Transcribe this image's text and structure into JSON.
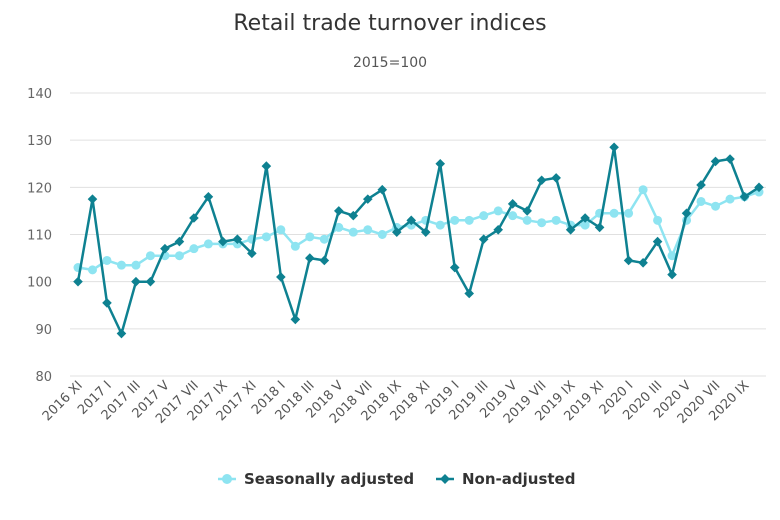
{
  "chart_data": {
    "type": "line",
    "title": "Retail trade turnover indices",
    "subtitle": "2015=100",
    "xlabel": "",
    "ylabel": "",
    "ylim": [
      80,
      140
    ],
    "yticks": [
      80,
      90,
      100,
      110,
      120,
      130,
      140
    ],
    "grid": true,
    "legend_position": "bottom-center",
    "x": [
      "2016 XI",
      "2016 XII",
      "2017 I",
      "2017 II",
      "2017 III",
      "2017 IV",
      "2017 V",
      "2017 VI",
      "2017 VII",
      "2017 VIII",
      "2017 IX",
      "2017 X",
      "2017 XI",
      "2017 XII",
      "2018 I",
      "2018 II",
      "2018 III",
      "2018 IV",
      "2018 V",
      "2018 VI",
      "2018 VII",
      "2018 VIII",
      "2018 IX",
      "2018 X",
      "2018 XI",
      "2018 XII",
      "2019 I",
      "2019 II",
      "2019 III",
      "2019 IV",
      "2019 V",
      "2019 VI",
      "2019 VII",
      "2019 VIII",
      "2019 IX",
      "2019 X",
      "2019 XI",
      "2019 XII",
      "2020 I",
      "2020 II",
      "2020 III",
      "2020 IV",
      "2020 V",
      "2020 VI",
      "2020 VII",
      "2020 VIII",
      "2020 IX",
      "2020 X"
    ],
    "tick_labels": [
      "2016 XI",
      "2017 I",
      "2017 III",
      "2017 V",
      "2017 VII",
      "2017 IX",
      "2017 XI",
      "2018 I",
      "2018 III",
      "2018 V",
      "2018 VII",
      "2018 IX",
      "2018 XI",
      "2019 I",
      "2019 III",
      "2019 V",
      "2019 VII",
      "2019 IX",
      "2019 XI",
      "2020 I",
      "2020 III",
      "2020 V",
      "2020 VII",
      "2020 IX"
    ],
    "series": [
      {
        "name": "Seasonally adjusted",
        "color": "#8ee4f1",
        "marker": "circle",
        "values": [
          103.0,
          102.5,
          104.5,
          103.5,
          103.5,
          105.5,
          105.5,
          105.5,
          107.0,
          108.0,
          108.0,
          108.0,
          109.0,
          109.5,
          111.0,
          107.5,
          109.5,
          109.0,
          111.5,
          110.5,
          111.0,
          110.0,
          111.5,
          112.0,
          113.0,
          112.0,
          113.0,
          113.0,
          114.0,
          115.0,
          114.0,
          113.0,
          112.5,
          113.0,
          112.0,
          112.0,
          114.5,
          114.5,
          114.5,
          119.5,
          113.0,
          105.5,
          113.0,
          117.0,
          116.0,
          117.5,
          118.0,
          119.0
        ]
      },
      {
        "name": "Non-adjusted",
        "color": "#0e8191",
        "marker": "diamond",
        "values": [
          100.0,
          117.5,
          95.5,
          89.0,
          100.0,
          100.0,
          107.0,
          108.5,
          113.5,
          118.0,
          108.5,
          109.0,
          106.0,
          124.5,
          101.0,
          92.0,
          105.0,
          104.5,
          115.0,
          114.0,
          117.5,
          119.5,
          110.5,
          113.0,
          110.5,
          125.0,
          103.0,
          97.5,
          109.0,
          111.0,
          116.5,
          115.0,
          121.5,
          122.0,
          111.0,
          113.5,
          111.5,
          128.5,
          104.5,
          104.0,
          108.5,
          101.5,
          114.5,
          120.5,
          125.5,
          126.0,
          118.0,
          120.0
        ]
      }
    ]
  }
}
